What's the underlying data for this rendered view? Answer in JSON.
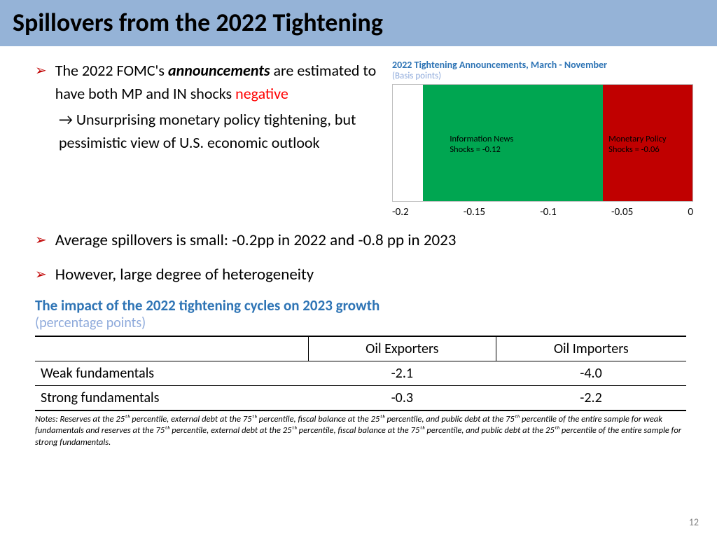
{
  "title": "Spillovers from the 2022 Tightening",
  "bullet1_pre": "The 2022 FOMC's ",
  "bullet1_bold": "announcements",
  "bullet1_mid": " are estimated to have both MP and IN shocks ",
  "bullet1_red": "negative",
  "bullet1_sub": "→ Unsurprising monetary policy tightening, but pessimistic view of U.S. economic outlook",
  "bullet2": "Average spillovers is small: -0.2pp in 2022 and -0.8 pp in 2023",
  "bullet3": "However, large degree of heterogeneity",
  "chart": {
    "title": "2022 Tightening Announcements, March - November",
    "subtitle": "(Basis points)",
    "in_label": "Information News Shocks = -0.12",
    "mp_label": "Monetary Policy Shocks = -0.06",
    "in_value": -0.12,
    "mp_value": -0.06,
    "in_color": "#00a651",
    "mp_color": "#c00000",
    "xmin": -0.2,
    "xmax": 0,
    "ticks": [
      "-0.2",
      "-0.15",
      "-0.1",
      "-0.05",
      "0"
    ]
  },
  "table": {
    "title": "The impact of the 2022 tightening cycles on 2023 growth",
    "subtitle": "(percentage points)",
    "columns": [
      "",
      "Oil Exporters",
      "Oil Importers"
    ],
    "rows": [
      [
        "Weak fundamentals",
        "-2.1",
        "-4.0"
      ],
      [
        "Strong fundamentals",
        "-0.3",
        "-2.2"
      ]
    ]
  },
  "notes_label": "Notes:",
  "notes": " Reserves at the 25ᵗʰ percentile, external debt at the 75ᵗʰ percentile, fiscal balance at the 25ᵗʰ percentile, and public debt at the 75ᵗʰ percentile of the entire sample for weak fundamentals and reserves at the 75ᵗʰ percentile, external debt at the 25ᵗʰ percentile, fiscal balance at the 75ᵗʰ percentile, and public debt at the 25ᵗʰ percentile of the entire sample for strong fundamentals.",
  "page": "12"
}
